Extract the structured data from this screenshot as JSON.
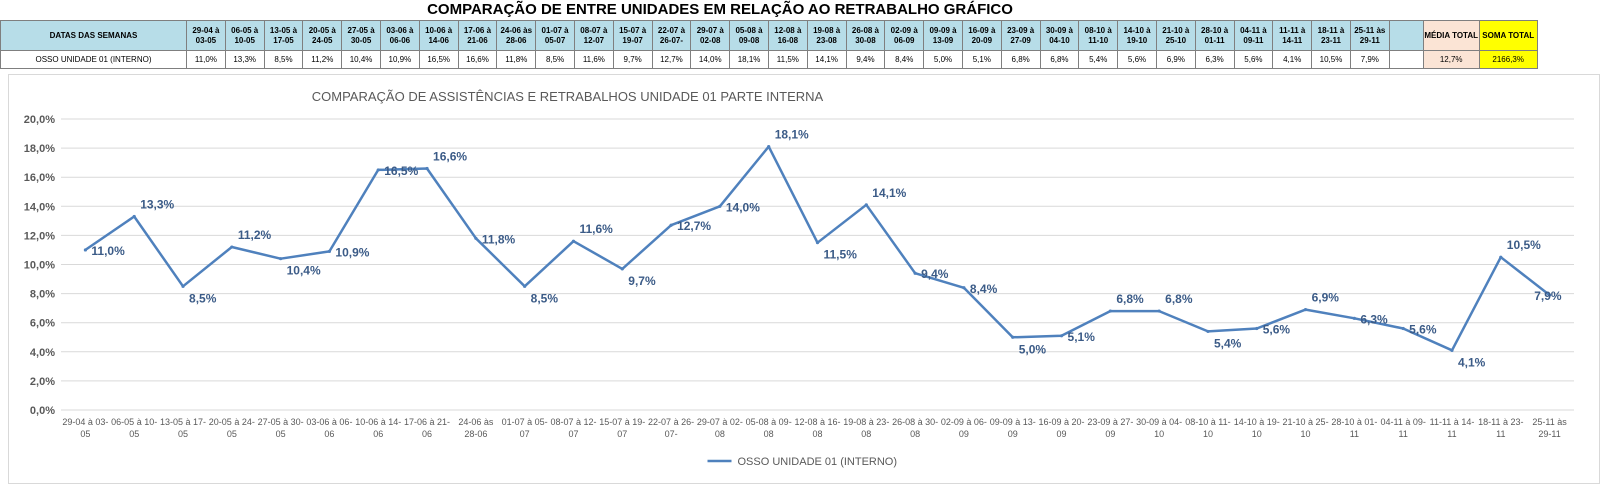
{
  "sheet": {
    "title": "COMPARAÇÃO DE ENTRE UNIDADES EM RELAÇÃO AO RETRABALHO GRÁFICO",
    "header_label": "DATAS DAS SEMANAS",
    "row_label": "OSSO UNIDADE 01 (INTERNO)",
    "weeks": [
      [
        "29-04 à",
        "03-05"
      ],
      [
        "06-05 à",
        "10-05"
      ],
      [
        "13-05 à",
        "17-05"
      ],
      [
        "20-05 à",
        "24-05"
      ],
      [
        "27-05 à",
        "30-05"
      ],
      [
        "03-06 à",
        "06-06"
      ],
      [
        "10-06 à",
        "14-06"
      ],
      [
        "17-06 à",
        "21-06"
      ],
      [
        "24-06 às",
        "28-06"
      ],
      [
        "01-07 à",
        "05-07"
      ],
      [
        "08-07 à",
        "12-07"
      ],
      [
        "15-07 à",
        "19-07"
      ],
      [
        "22-07 à",
        "26-07-"
      ],
      [
        "29-07 à",
        "02-08"
      ],
      [
        "05-08 à",
        "09-08"
      ],
      [
        "12-08 à",
        "16-08"
      ],
      [
        "19-08 à",
        "23-08"
      ],
      [
        "26-08 à",
        "30-08"
      ],
      [
        "02-09 à",
        "06-09"
      ],
      [
        "09-09 à",
        "13-09"
      ],
      [
        "16-09 à",
        "20-09"
      ],
      [
        "23-09 à",
        "27-09"
      ],
      [
        "30-09 à",
        "04-10"
      ],
      [
        "08-10 à",
        "11-10"
      ],
      [
        "14-10 à",
        "19-10"
      ],
      [
        "21-10 à",
        "25-10"
      ],
      [
        "28-10 à",
        "01-11"
      ],
      [
        "04-11 à",
        "09-11"
      ],
      [
        "11-11 à",
        "14-11"
      ],
      [
        "18-11 à",
        "23-11"
      ],
      [
        "25-11 às",
        "29-11"
      ]
    ],
    "values_text": [
      "11,0%",
      "13,3%",
      "8,5%",
      "11,2%",
      "10,4%",
      "10,9%",
      "16,5%",
      "16,6%",
      "11,8%",
      "8,5%",
      "11,6%",
      "9,7%",
      "12,7%",
      "14,0%",
      "18,1%",
      "11,5%",
      "14,1%",
      "9,4%",
      "8,4%",
      "5,0%",
      "5,1%",
      "6,8%",
      "6,8%",
      "5,4%",
      "5,6%",
      "6,9%",
      "6,3%",
      "5,6%",
      "4,1%",
      "10,5%",
      "7,9%"
    ],
    "media_label": "MÉDIA TOTAL",
    "soma_label": "SOMA TOTAL",
    "media_value": "12,7%",
    "soma_value": "2166,3%",
    "colors": {
      "header_fill": "#b7dde8",
      "media_fill": "#fbe4d5",
      "soma_fill": "#ffff00"
    }
  },
  "chart_data": {
    "type": "line",
    "title": "COMPARAÇÃO DE ASSISTÊNCIAS E RETRABALHOS UNIDADE 01 PARTE INTERNA",
    "categories": [
      [
        "29-04 à 03-",
        "05"
      ],
      [
        "06-05 à 10-",
        "05"
      ],
      [
        "13-05 à 17-",
        "05"
      ],
      [
        "20-05 à 24-",
        "05"
      ],
      [
        "27-05 à 30-",
        "05"
      ],
      [
        "03-06 à 06-",
        "06"
      ],
      [
        "10-06 à 14-",
        "06"
      ],
      [
        "17-06 à 21-",
        "06"
      ],
      [
        "24-06 às",
        "28-06"
      ],
      [
        "01-07 à 05-",
        "07"
      ],
      [
        "08-07 à 12-",
        "07"
      ],
      [
        "15-07 à 19-",
        "07"
      ],
      [
        "22-07 à 26-",
        "07-"
      ],
      [
        "29-07 à 02-",
        "08"
      ],
      [
        "05-08 à 09-",
        "08"
      ],
      [
        "12-08 à 16-",
        "08"
      ],
      [
        "19-08 à 23-",
        "08"
      ],
      [
        "26-08 à 30-",
        "08"
      ],
      [
        "02-09 à 06-",
        "09"
      ],
      [
        "09-09 à 13-",
        "09"
      ],
      [
        "16-09 à 20-",
        "09"
      ],
      [
        "23-09 à 27-",
        "09"
      ],
      [
        "30-09 à 04-",
        "10"
      ],
      [
        "08-10 à 11-",
        "10"
      ],
      [
        "14-10 à 19-",
        "10"
      ],
      [
        "21-10 à 25-",
        "10"
      ],
      [
        "28-10 à 01-",
        "11"
      ],
      [
        "04-11 à 09-",
        "11"
      ],
      [
        "11-11 à 14-",
        "11"
      ],
      [
        "18-11 à 23-",
        "11"
      ],
      [
        "25-11 às",
        "29-11"
      ]
    ],
    "series": [
      {
        "name": "OSSO UNIDADE 01 (INTERNO)",
        "values": [
          11.0,
          13.3,
          8.5,
          11.2,
          10.4,
          10.9,
          16.5,
          16.6,
          11.8,
          8.5,
          11.6,
          9.7,
          12.7,
          14.0,
          18.1,
          11.5,
          14.1,
          9.4,
          8.4,
          5.0,
          5.1,
          6.8,
          6.8,
          5.4,
          5.6,
          6.9,
          6.3,
          5.6,
          4.1,
          10.5,
          7.9
        ],
        "labels": [
          "11,0%",
          "13,3%",
          "8,5%",
          "11,2%",
          "10,4%",
          "10,9%",
          "16,5%",
          "16,6%",
          "11,8%",
          "8,5%",
          "11,6%",
          "9,7%",
          "12,7%",
          "14,0%",
          "18,1%",
          "11,5%",
          "14,1%",
          "9,4%",
          "8,4%",
          "5,0%",
          "5,1%",
          "6,8%",
          "6,8%",
          "5,4%",
          "5,6%",
          "6,9%",
          "6,3%",
          "5,6%",
          "4,1%",
          "10,5%",
          "7,9%"
        ],
        "color": "#4f81bd"
      }
    ],
    "y_ticks": [
      "0,0%",
      "2,0%",
      "4,0%",
      "6,0%",
      "8,0%",
      "10,0%",
      "12,0%",
      "14,0%",
      "16,0%",
      "18,0%",
      "20,0%"
    ],
    "ylim": [
      0,
      20
    ],
    "grid": true,
    "legend": "bottom",
    "label_color": "#3b5b87"
  }
}
